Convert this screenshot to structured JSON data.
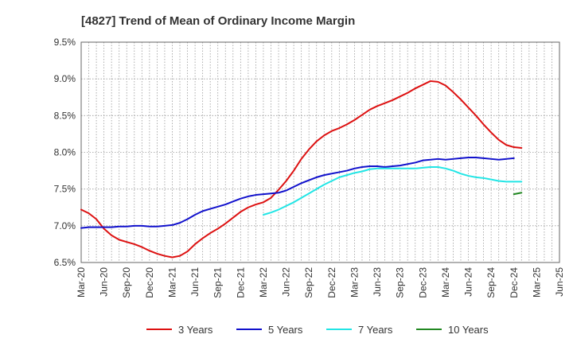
{
  "chart_data": {
    "type": "line",
    "title": "[4827]  Trend of Mean of Ordinary Income Margin",
    "xlabel": "",
    "ylabel": "",
    "x_ticks": [
      "Mar-20",
      "Jun-20",
      "Sep-20",
      "Dec-20",
      "Mar-21",
      "Jun-21",
      "Sep-21",
      "Dec-21",
      "Mar-22",
      "Jun-22",
      "Sep-22",
      "Dec-22",
      "Mar-23",
      "Jun-23",
      "Sep-23",
      "Dec-23",
      "Mar-24",
      "Jun-24",
      "Sep-24",
      "Dec-24",
      "Mar-25",
      "Jun-25"
    ],
    "y_ticks": [
      "6.5%",
      "7.0%",
      "7.5%",
      "8.0%",
      "8.5%",
      "9.0%",
      "9.5%"
    ],
    "ylim": [
      6.5,
      9.5
    ],
    "grid": true,
    "legend_position": "bottom",
    "series": [
      {
        "name": "3 Years",
        "color": "#dd1111",
        "start_index": 0,
        "values": [
          7.22,
          7.17,
          7.09,
          6.96,
          6.87,
          6.81,
          6.78,
          6.75,
          6.71,
          6.66,
          6.62,
          6.59,
          6.57,
          6.59,
          6.65,
          6.75,
          6.83,
          6.9,
          6.96,
          7.03,
          7.11,
          7.19,
          7.25,
          7.29,
          7.32,
          7.38,
          7.49,
          7.61,
          7.75,
          7.91,
          8.04,
          8.15,
          8.23,
          8.29,
          8.33,
          8.38,
          8.44,
          8.51,
          8.58,
          8.63,
          8.67,
          8.71,
          8.76,
          8.81,
          8.87,
          8.92,
          8.97,
          8.96,
          8.91,
          8.82,
          8.72,
          8.61,
          8.5,
          8.38,
          8.27,
          8.17,
          8.1,
          8.07,
          8.06
        ]
      },
      {
        "name": "5 Years",
        "color": "#1111cc",
        "start_index": 0,
        "values": [
          6.97,
          6.98,
          6.98,
          6.98,
          6.98,
          6.99,
          6.99,
          7.0,
          7.0,
          6.99,
          6.99,
          7.0,
          7.01,
          7.04,
          7.09,
          7.15,
          7.2,
          7.23,
          7.26,
          7.29,
          7.33,
          7.37,
          7.4,
          7.42,
          7.43,
          7.44,
          7.45,
          7.48,
          7.53,
          7.58,
          7.62,
          7.66,
          7.69,
          7.71,
          7.73,
          7.75,
          7.78,
          7.8,
          7.81,
          7.81,
          7.8,
          7.81,
          7.82,
          7.84,
          7.86,
          7.89,
          7.9,
          7.91,
          7.9,
          7.91,
          7.92,
          7.93,
          7.93,
          7.92,
          7.91,
          7.9,
          7.91,
          7.92
        ]
      },
      {
        "name": "7 Years",
        "color": "#22e5e5",
        "start_index": 24,
        "values": [
          7.15,
          7.18,
          7.22,
          7.27,
          7.32,
          7.38,
          7.44,
          7.5,
          7.56,
          7.61,
          7.66,
          7.69,
          7.72,
          7.74,
          7.77,
          7.78,
          7.78,
          7.78,
          7.78,
          7.78,
          7.78,
          7.79,
          7.8,
          7.8,
          7.78,
          7.75,
          7.71,
          7.68,
          7.66,
          7.65,
          7.63,
          7.61,
          7.6,
          7.6,
          7.6
        ]
      },
      {
        "name": "10 Years",
        "color": "#228822",
        "start_index": 57,
        "values": [
          7.43,
          7.45
        ]
      }
    ]
  }
}
